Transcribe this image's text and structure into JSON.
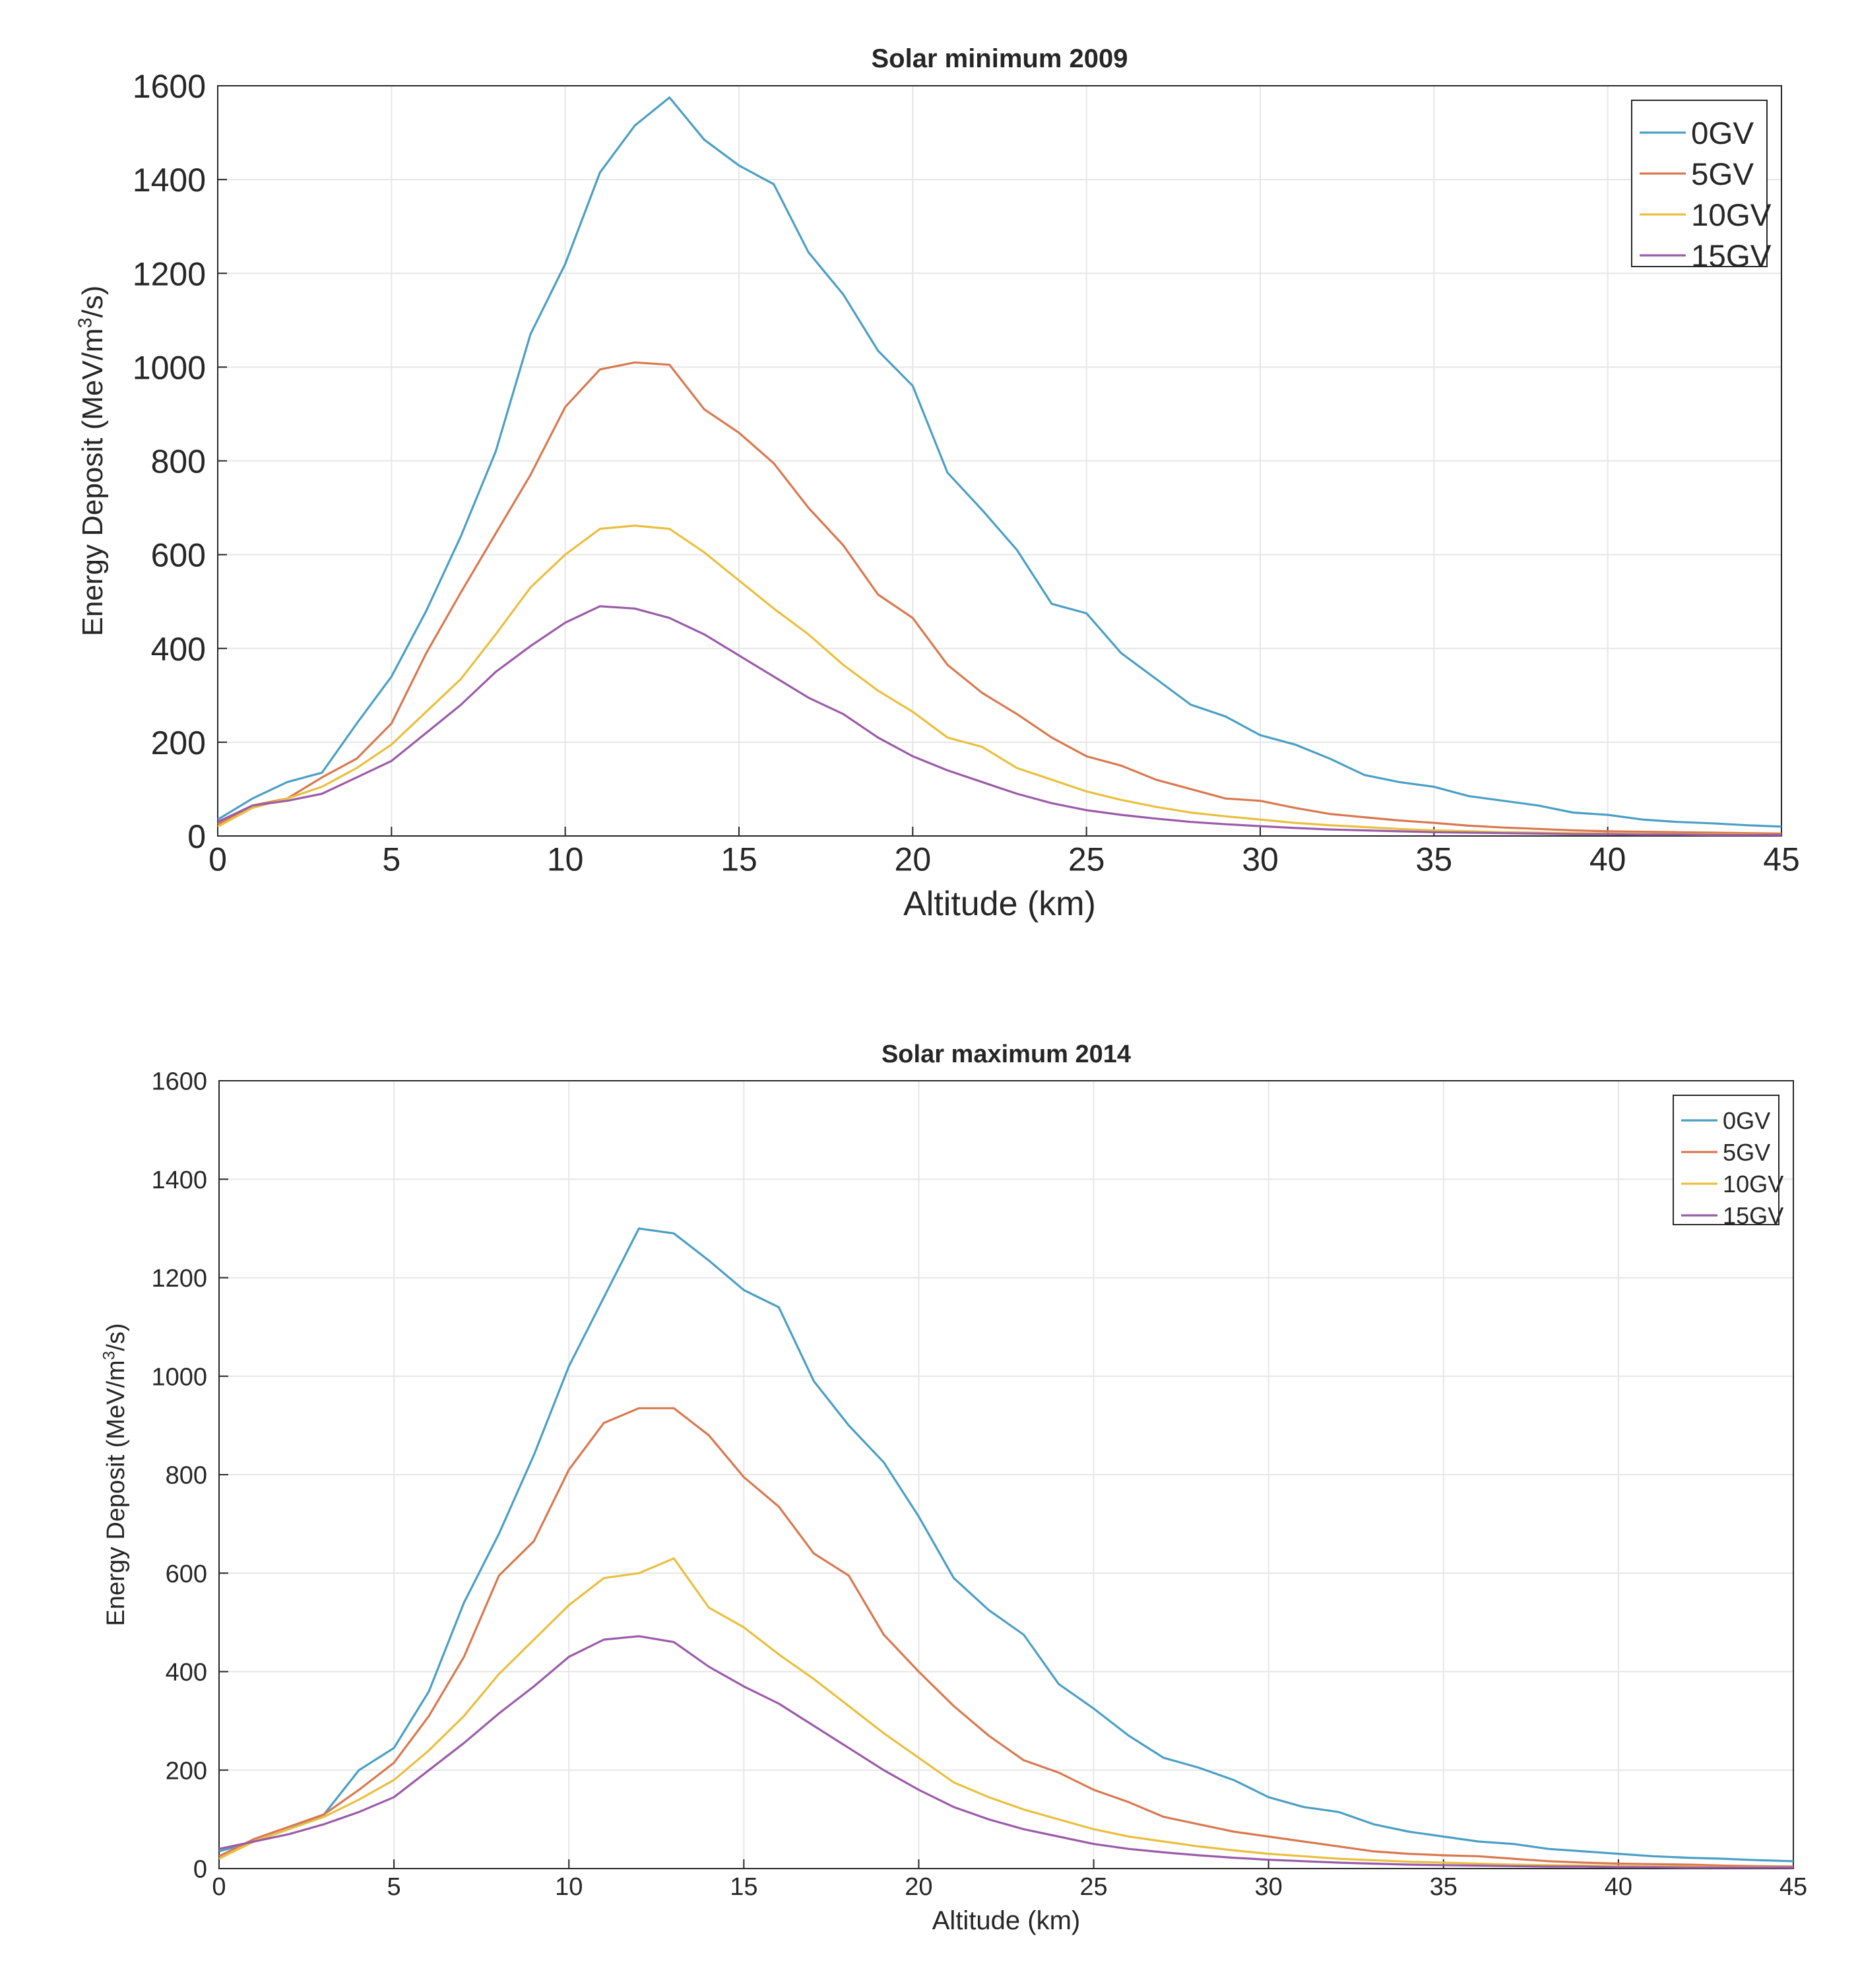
{
  "chart_data": [
    {
      "type": "line",
      "title": "Solar minimum 2009",
      "xlabel": "Altitude (km)",
      "ylabel_main": "Energy Deposit (MeV/m",
      "ylabel_sup": "3",
      "ylabel_tail": "/s)",
      "xlim": [
        0,
        45
      ],
      "ylim": [
        0,
        1600
      ],
      "xticks": [
        0,
        5,
        10,
        15,
        20,
        25,
        30,
        35,
        40,
        45
      ],
      "yticks": [
        0,
        200,
        400,
        600,
        800,
        1000,
        1200,
        1400,
        1600
      ],
      "grid": true,
      "legend_position": "top-right",
      "x": [
        0,
        1,
        2,
        3,
        4,
        5,
        6,
        7,
        8,
        9,
        10,
        11,
        12,
        13,
        14,
        15,
        16,
        17,
        18,
        19,
        20,
        21,
        22,
        23,
        24,
        25,
        26,
        27,
        28,
        29,
        30,
        31,
        32,
        33,
        34,
        35,
        36,
        37,
        38,
        39,
        40,
        41,
        42,
        43,
        44,
        45
      ],
      "series": [
        {
          "name": "0GV",
          "color": "#4a9fc4",
          "values": [
            35,
            80,
            115,
            135,
            240,
            340,
            480,
            640,
            820,
            1070,
            1220,
            1415,
            1515,
            1575,
            1485,
            1430,
            1390,
            1245,
            1155,
            1035,
            960,
            775,
            695,
            610,
            495,
            475,
            390,
            335,
            280,
            255,
            215,
            195,
            165,
            130,
            115,
            105,
            85,
            75,
            65,
            50,
            45,
            35,
            30,
            27,
            23,
            20
          ]
        },
        {
          "name": "5GV",
          "color": "#d9784f",
          "values": [
            25,
            65,
            80,
            125,
            165,
            240,
            390,
            520,
            645,
            770,
            915,
            995,
            1010,
            1005,
            910,
            860,
            795,
            700,
            620,
            515,
            465,
            365,
            305,
            260,
            210,
            170,
            150,
            120,
            100,
            80,
            75,
            60,
            47,
            40,
            33,
            28,
            22,
            18,
            15,
            12,
            10,
            9,
            8,
            7,
            6,
            5
          ]
        },
        {
          "name": "10GV",
          "color": "#e9bf3e",
          "values": [
            20,
            60,
            80,
            105,
            145,
            195,
            265,
            335,
            430,
            530,
            600,
            655,
            662,
            655,
            605,
            545,
            485,
            430,
            365,
            310,
            265,
            210,
            190,
            145,
            120,
            95,
            77,
            62,
            50,
            42,
            35,
            28,
            23,
            19,
            15,
            12,
            10,
            8,
            7,
            6,
            5,
            4,
            4,
            3,
            3,
            2
          ]
        },
        {
          "name": "15GV",
          "color": "#9a5ba8",
          "values": [
            30,
            65,
            75,
            90,
            125,
            160,
            220,
            280,
            350,
            405,
            455,
            490,
            485,
            465,
            430,
            385,
            340,
            295,
            260,
            210,
            170,
            140,
            115,
            90,
            70,
            55,
            45,
            37,
            30,
            25,
            21,
            17,
            14,
            12,
            10,
            8,
            7,
            6,
            5,
            4,
            4,
            3,
            3,
            2,
            2,
            2
          ]
        }
      ]
    },
    {
      "type": "line",
      "title": "Solar maximum 2014",
      "xlabel": "Altitude (km)",
      "ylabel_main": "Energy Deposit (MeV/m",
      "ylabel_sup": "3",
      "ylabel_tail": "/s)",
      "xlim": [
        0,
        45
      ],
      "ylim": [
        0,
        1600
      ],
      "xticks": [
        0,
        5,
        10,
        15,
        20,
        25,
        30,
        35,
        40,
        45
      ],
      "yticks": [
        0,
        200,
        400,
        600,
        800,
        1000,
        1200,
        1400,
        1600
      ],
      "grid": true,
      "legend_position": "top-right",
      "x": [
        0,
        1,
        2,
        3,
        4,
        5,
        6,
        7,
        8,
        9,
        10,
        11,
        12,
        13,
        14,
        15,
        16,
        17,
        18,
        19,
        20,
        21,
        22,
        23,
        24,
        25,
        26,
        27,
        28,
        29,
        30,
        31,
        32,
        33,
        34,
        35,
        36,
        37,
        38,
        39,
        40,
        41,
        42,
        43,
        44,
        45
      ],
      "series": [
        {
          "name": "0GV",
          "color": "#4a9fc4",
          "values": [
            35,
            55,
            80,
            110,
            200,
            245,
            360,
            540,
            680,
            840,
            1020,
            1160,
            1300,
            1290,
            1235,
            1175,
            1140,
            990,
            900,
            825,
            715,
            590,
            525,
            475,
            375,
            325,
            270,
            225,
            205,
            180,
            145,
            125,
            115,
            90,
            75,
            65,
            55,
            50,
            40,
            35,
            30,
            25,
            22,
            20,
            17,
            15
          ]
        },
        {
          "name": "5GV",
          "color": "#d9784f",
          "values": [
            25,
            60,
            85,
            110,
            160,
            215,
            310,
            430,
            595,
            665,
            810,
            905,
            935,
            935,
            880,
            795,
            735,
            640,
            595,
            475,
            400,
            330,
            270,
            220,
            195,
            160,
            135,
            105,
            90,
            75,
            65,
            55,
            45,
            35,
            30,
            27,
            25,
            20,
            15,
            12,
            10,
            9,
            8,
            6,
            5,
            4
          ]
        },
        {
          "name": "10GV",
          "color": "#e9bf3e",
          "values": [
            20,
            55,
            80,
            105,
            140,
            180,
            240,
            310,
            395,
            465,
            535,
            590,
            600,
            630,
            530,
            490,
            435,
            385,
            330,
            275,
            225,
            175,
            145,
            120,
            100,
            80,
            65,
            55,
            45,
            37,
            30,
            25,
            20,
            17,
            14,
            12,
            10,
            8,
            7,
            6,
            5,
            4,
            4,
            3,
            3,
            2
          ]
        },
        {
          "name": "15GV",
          "color": "#9a5ba8",
          "values": [
            40,
            55,
            70,
            90,
            115,
            145,
            200,
            255,
            315,
            370,
            430,
            465,
            472,
            460,
            410,
            370,
            335,
            290,
            245,
            200,
            160,
            125,
            100,
            80,
            65,
            50,
            40,
            33,
            27,
            22,
            18,
            15,
            12,
            10,
            8,
            7,
            6,
            5,
            4,
            4,
            3,
            3,
            2,
            2,
            2,
            2
          ]
        }
      ]
    }
  ]
}
